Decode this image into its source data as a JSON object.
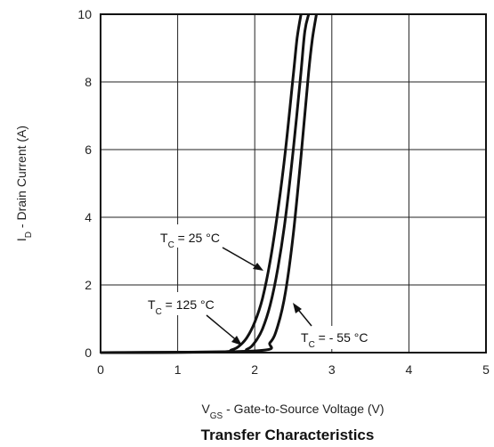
{
  "chart_data": {
    "type": "line",
    "title": "Transfer Characteristics",
    "xlabel": {
      "main": "V",
      "sub": "GS",
      "rest": " - Gate-to-Source Voltage (V)"
    },
    "ylabel": {
      "main": "I",
      "sub": "D",
      "rest": " - Drain Current (A)"
    },
    "xlim": [
      0,
      5
    ],
    "ylim": [
      0,
      10
    ],
    "xticks": [
      "0",
      "1",
      "2",
      "3",
      "4",
      "5"
    ],
    "yticks": [
      "0",
      "2",
      "4",
      "6",
      "8",
      "10"
    ],
    "grid": true,
    "series": [
      {
        "name": "TC = 125 °C",
        "x": [
          0,
          1.5,
          1.7,
          1.8,
          1.9,
          2.0,
          2.1,
          2.2,
          2.3,
          2.4,
          2.5,
          2.55,
          2.6
        ],
        "y": [
          0,
          0.02,
          0.08,
          0.2,
          0.45,
          0.9,
          1.6,
          2.7,
          4.2,
          6.0,
          8.2,
          9.3,
          10
        ]
      },
      {
        "name": "TC = 25 °C",
        "x": [
          0,
          1.7,
          1.9,
          2.0,
          2.1,
          2.2,
          2.3,
          2.4,
          2.5,
          2.6,
          2.65,
          2.7
        ],
        "y": [
          0,
          0.02,
          0.1,
          0.3,
          0.7,
          1.4,
          2.5,
          4.0,
          6.0,
          8.3,
          9.5,
          10
        ]
      },
      {
        "name": "TC = - 55 °C",
        "x": [
          0,
          2.0,
          2.2,
          2.3,
          2.4,
          2.5,
          2.6,
          2.7,
          2.75,
          2.8
        ],
        "y": [
          0,
          0.05,
          0.3,
          0.8,
          1.8,
          3.5,
          5.8,
          8.3,
          9.3,
          10
        ]
      }
    ],
    "annotations": [
      {
        "main": "T",
        "sub": "C",
        "rest": " = 25 °C"
      },
      {
        "main": "T",
        "sub": "C",
        "rest": " = 125 °C"
      },
      {
        "main": "T",
        "sub": "C",
        "rest": " = - 55 °C"
      }
    ]
  }
}
